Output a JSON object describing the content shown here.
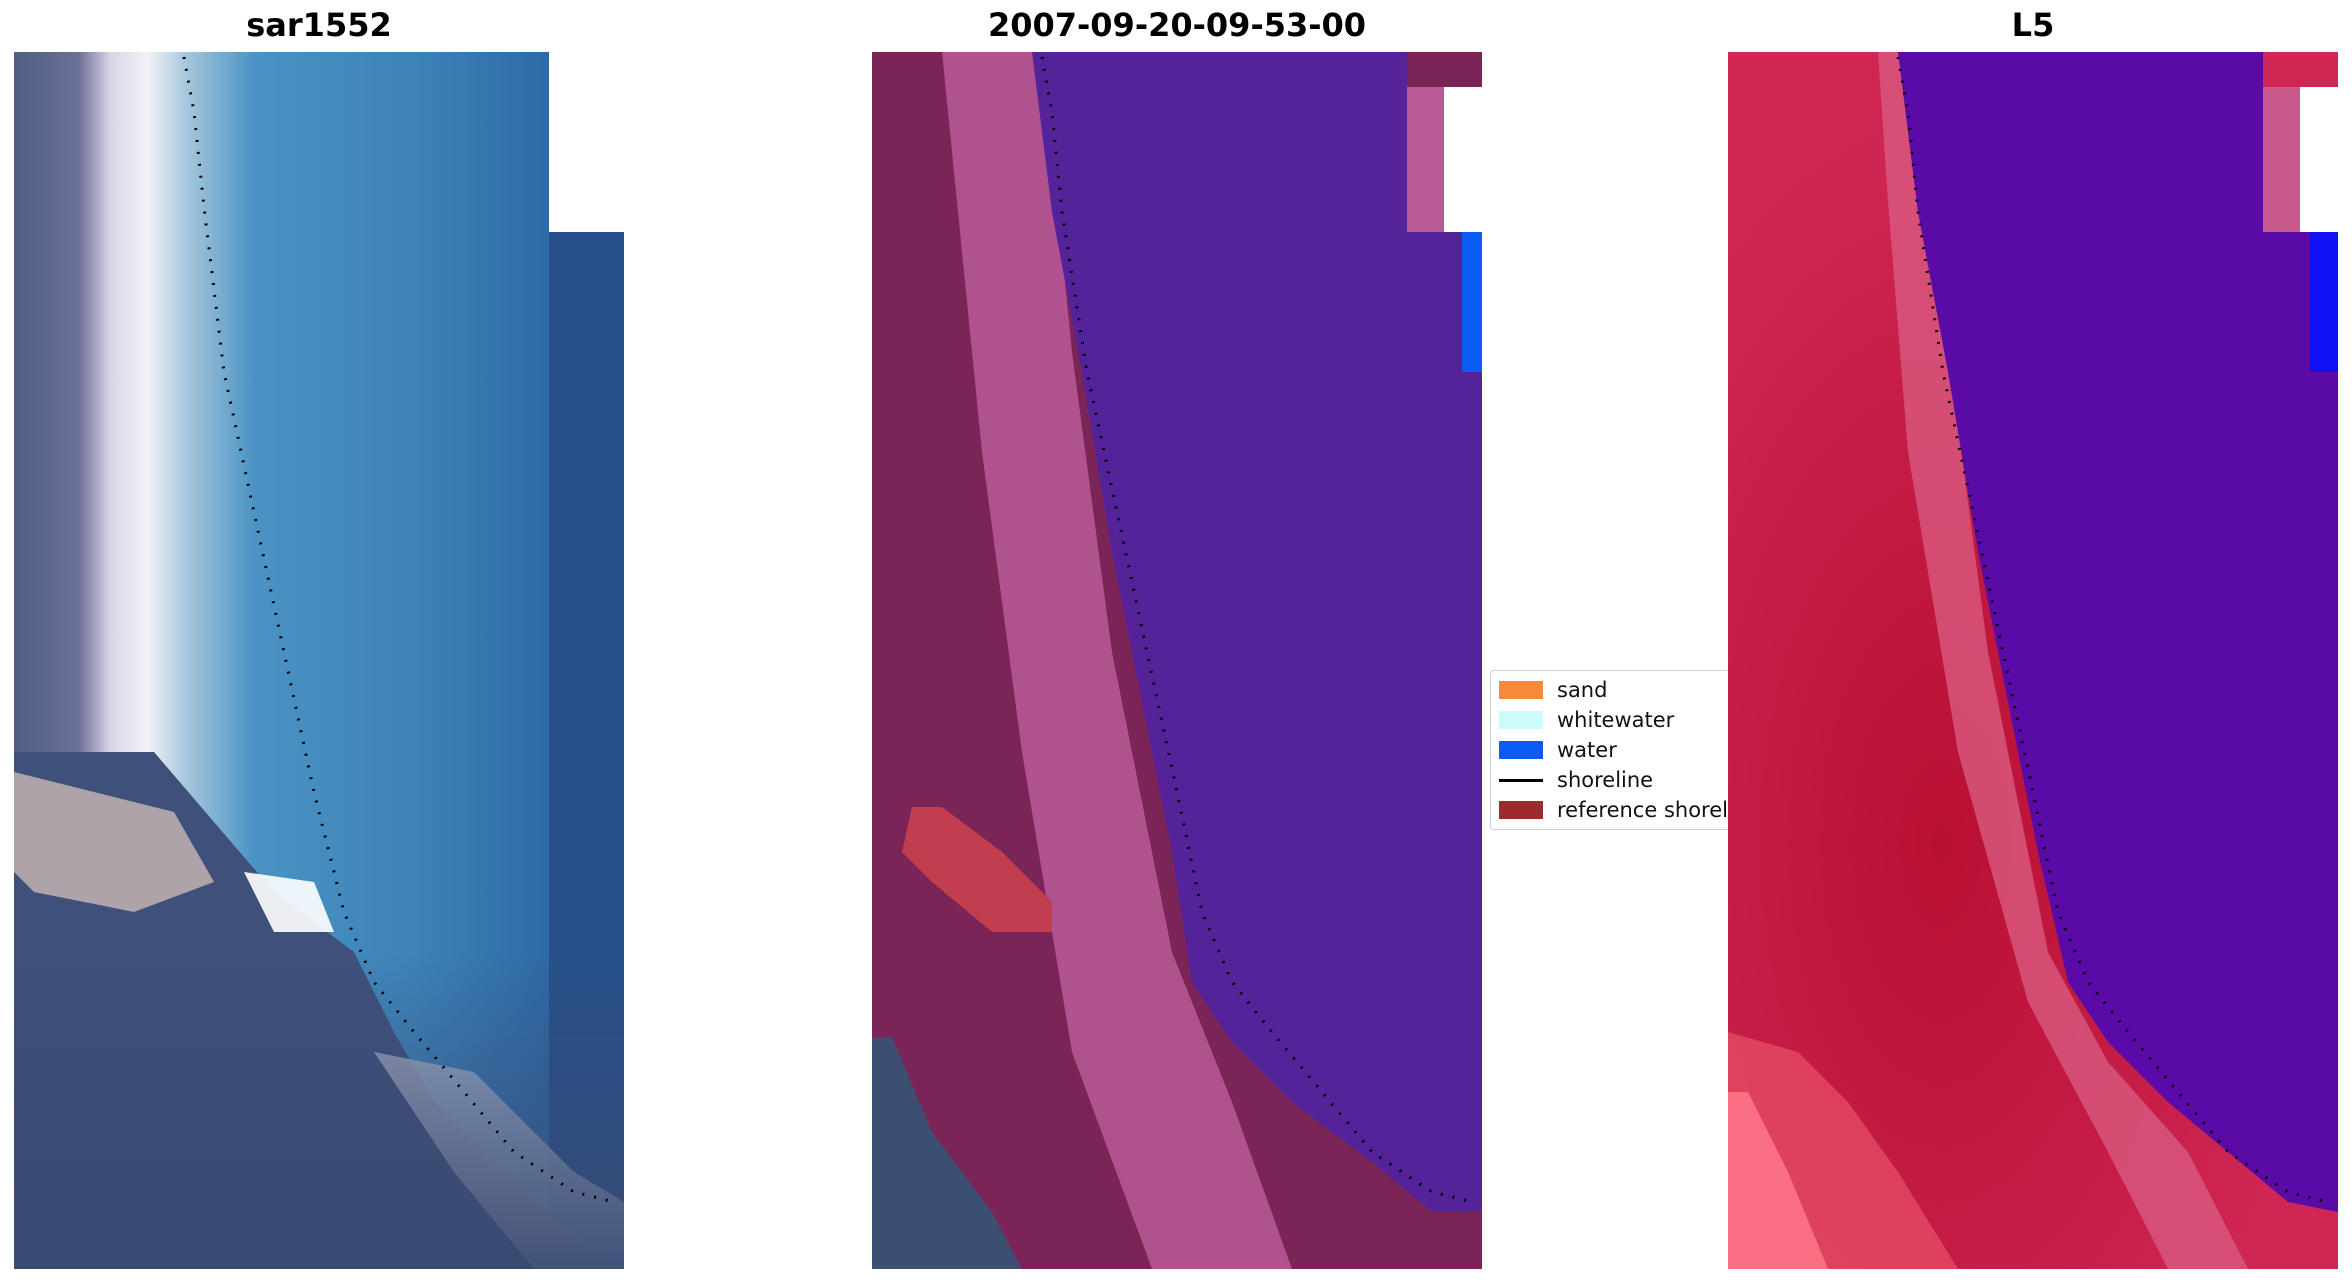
{
  "panels": [
    {
      "title": "sar1552"
    },
    {
      "title": "2007-09-20-09-53-00"
    },
    {
      "title": "L5"
    }
  ],
  "legend": {
    "items": [
      {
        "label": "sand",
        "color": "#f58a3c",
        "kind": "patch"
      },
      {
        "label": "whitewater",
        "color": "#ccfcfc",
        "kind": "patch"
      },
      {
        "label": "water",
        "color": "#0a5cf5",
        "kind": "patch"
      },
      {
        "label": "shoreline",
        "color": "#000000",
        "kind": "line"
      },
      {
        "label": "reference shoreli",
        "color": "#9b2c2c",
        "kind": "patch"
      }
    ]
  },
  "colors": {
    "rgb_sea": "#3a7bb0",
    "rgb_deep_sea": "#27508a",
    "rgb_land": "#556485",
    "rgb_surf": "#f2eff5",
    "class_sea": "#54239a",
    "class_land": "#7b2458",
    "class_land_light": "#b95a96",
    "index_sea": "#5a0aa6",
    "index_land": "#c2153c",
    "index_land_light": "#d8567c"
  }
}
